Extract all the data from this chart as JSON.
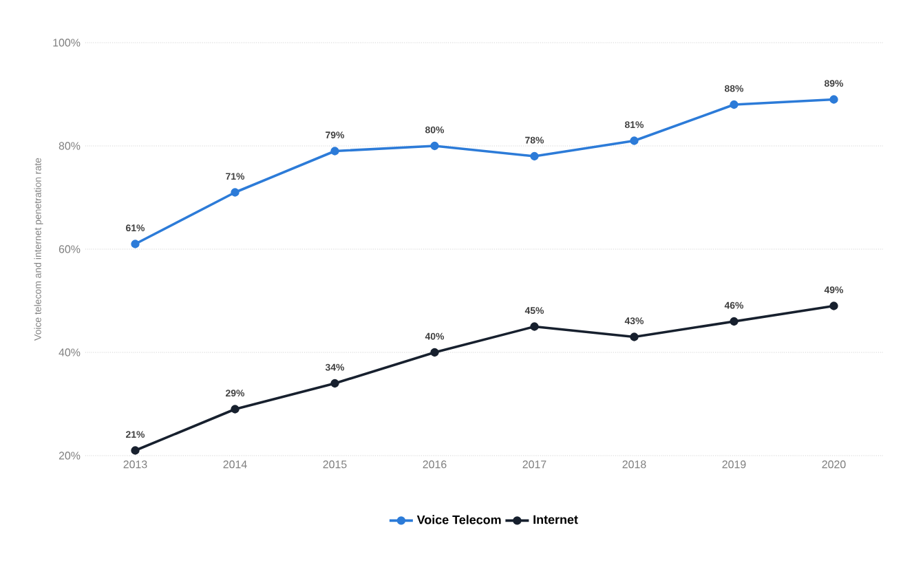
{
  "chart_data": {
    "type": "line",
    "ylabel": "Voice telecom and internet penetration rate",
    "categories": [
      "2013",
      "2014",
      "2015",
      "2016",
      "2017",
      "2018",
      "2019",
      "2020"
    ],
    "series": [
      {
        "name": "Voice Telecom",
        "color": "#2c7bd8",
        "values": [
          61,
          71,
          79,
          80,
          78,
          81,
          88,
          89
        ],
        "value_labels": [
          "61%",
          "71%",
          "79%",
          "80%",
          "78%",
          "81%",
          "88%",
          "89%"
        ]
      },
      {
        "name": "Internet",
        "color": "#17202e",
        "values": [
          21,
          29,
          34,
          40,
          45,
          43,
          46,
          49
        ],
        "value_labels": [
          "21%",
          "29%",
          "34%",
          "40%",
          "45%",
          "43%",
          "46%",
          "49%"
        ]
      }
    ],
    "ylim": [
      20,
      100
    ],
    "yticks": [
      {
        "value": 20,
        "label": "20%"
      },
      {
        "value": 40,
        "label": "40%"
      },
      {
        "value": 60,
        "label": "60%"
      },
      {
        "value": 80,
        "label": "80%"
      },
      {
        "value": 100,
        "label": "100%"
      }
    ],
    "grid": "y",
    "legend": "bottom",
    "marker": "circle",
    "line_style": "solid"
  }
}
